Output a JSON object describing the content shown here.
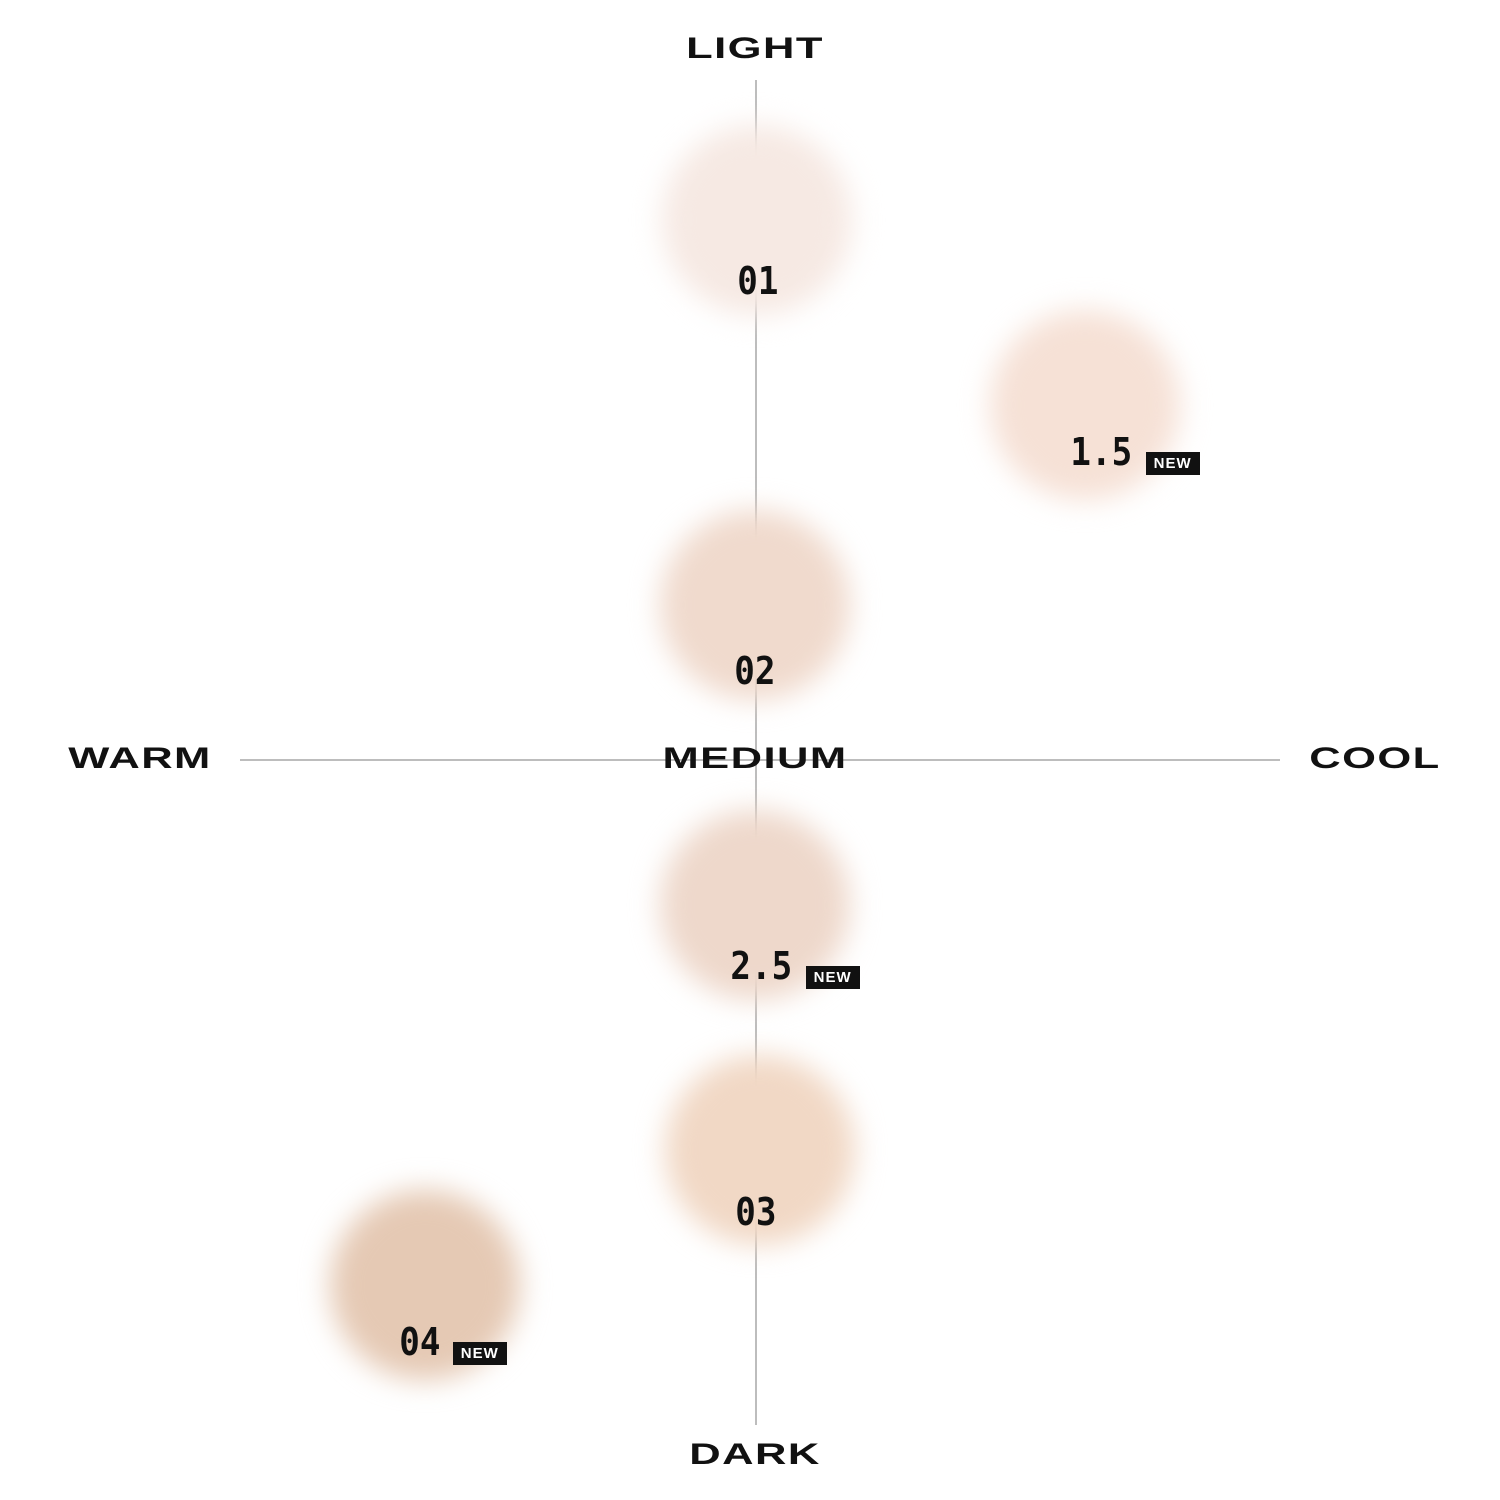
{
  "axes": {
    "top": "LIGHT",
    "bottom": "DARK",
    "left": "WARM",
    "right": "COOL",
    "center": "MEDIUM"
  },
  "badge_text": "NEW",
  "shades": [
    {
      "label": "01",
      "color": "#f6e9e3",
      "new": false
    },
    {
      "label": "1.5",
      "color": "#f6e1d6",
      "new": true
    },
    {
      "label": "02",
      "color": "#f0dacd",
      "new": false
    },
    {
      "label": "2.5",
      "color": "#eed8cb",
      "new": true
    },
    {
      "label": "03",
      "color": "#f1d8c5",
      "new": false
    },
    {
      "label": "04",
      "color": "#e5c9b4",
      "new": true
    }
  ]
}
